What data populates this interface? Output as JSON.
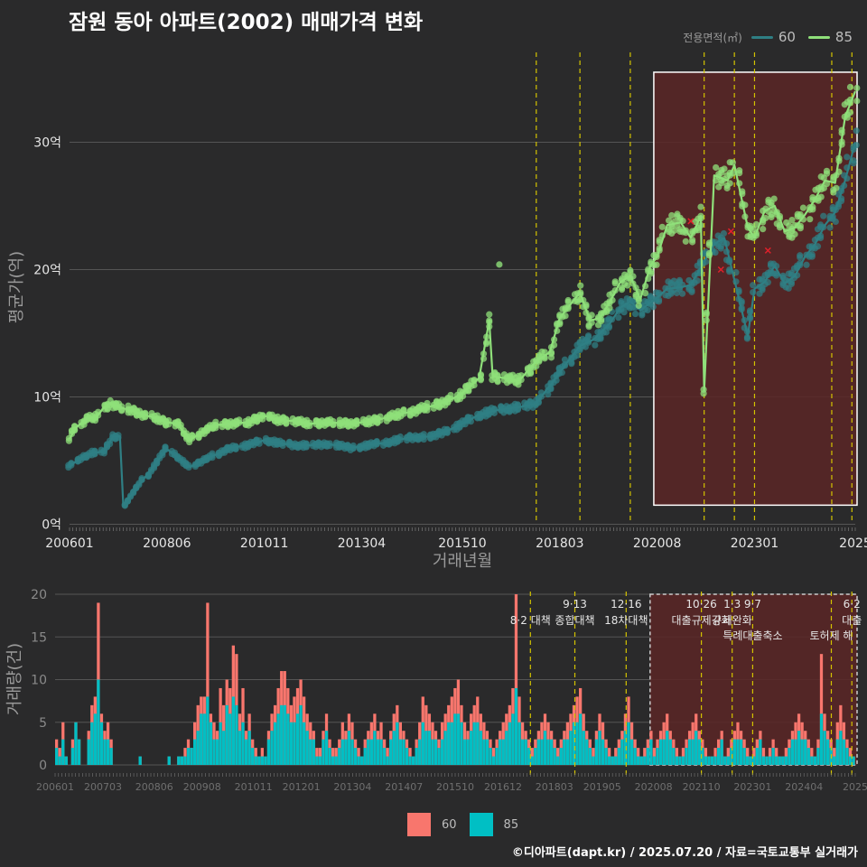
{
  "title": "잠원 동아 아파트(2002) 매매가격 변화",
  "credit": "©디아파트(dapt.kr) / 2025.07.20 / 자료=국토교통부 실거래가",
  "legend_top": {
    "label": "전용면적(㎡)",
    "items": [
      "60",
      "85"
    ]
  },
  "legend_bottom": {
    "items": [
      "60",
      "85"
    ]
  },
  "colors": {
    "background": "#2a2a2b",
    "s60_line": "#2f7f84",
    "s85_line": "#8fe07a",
    "bar60": "#f8766d",
    "bar85": "#00bfc4",
    "policy_line": "#d4c400",
    "highlight_fill": "#5a2626",
    "cancel_mark": "#e0202a"
  },
  "chart_data": [
    {
      "type": "line",
      "title": "잠원 동아 아파트(2002) 매매가격 변화",
      "xlabel": "거래년월",
      "ylabel": "평균가(억)",
      "ylim": [
        0,
        36
      ],
      "ytick_labels": [
        "0억",
        "10억",
        "20억",
        "30억"
      ],
      "yticks": [
        0,
        10,
        20,
        30
      ],
      "xtick_labels": [
        "200601",
        "200806",
        "201011",
        "201304",
        "201510",
        "201803",
        "202008",
        "202301",
        "2025"
      ],
      "xticks": [
        "2006-01",
        "2008-06",
        "2010-11",
        "2013-04",
        "2015-10",
        "2018-03",
        "2020-08",
        "2023-01",
        "2025-07"
      ],
      "policy_dates": [
        "2017-08",
        "2018-09",
        "2019-12",
        "2021-10",
        "2022-07",
        "2023-01",
        "2024-12",
        "2025-06"
      ],
      "highlight_range": [
        "2020-07",
        "2025-07"
      ],
      "highlight_ylim": [
        1.5,
        35.5
      ],
      "series": [
        {
          "name": "60",
          "points": [
            [
              "2006-01",
              4.5
            ],
            [
              "2006-04",
              5.2
            ],
            [
              "2006-08",
              5.6
            ],
            [
              "2006-11",
              5.7
            ],
            [
              "2007-02",
              6.9
            ],
            [
              "2007-04",
              6.9
            ],
            [
              "2007-05",
              1.5
            ],
            [
              "2008-06",
              5.9
            ],
            [
              "2009-01",
              4.5
            ],
            [
              "2009-06",
              5.2
            ],
            [
              "2009-09",
              5.5
            ],
            [
              "2010-01",
              6.0
            ],
            [
              "2010-06",
              6.2
            ],
            [
              "2010-11",
              6.6
            ],
            [
              "2011-03",
              6.4
            ],
            [
              "2011-08",
              6.2
            ],
            [
              "2012-01",
              6.2
            ],
            [
              "2012-06",
              6.3
            ],
            [
              "2013-01",
              6.0
            ],
            [
              "2013-06",
              6.2
            ],
            [
              "2014-01",
              6.5
            ],
            [
              "2014-06",
              6.8
            ],
            [
              "2015-01",
              6.9
            ],
            [
              "2015-06",
              7.4
            ],
            [
              "2015-10",
              7.9
            ],
            [
              "2016-03",
              8.6
            ],
            [
              "2016-09",
              9.0
            ],
            [
              "2017-03",
              9.2
            ],
            [
              "2017-08",
              9.5
            ],
            [
              "2018-01",
              11.2
            ],
            [
              "2018-06",
              13.0
            ],
            [
              "2018-09",
              14.0
            ],
            [
              "2019-01",
              14.5
            ],
            [
              "2019-06",
              15.8
            ],
            [
              "2019-09",
              17.0
            ],
            [
              "2019-12",
              17.5
            ],
            [
              "2020-03",
              16.8
            ],
            [
              "2020-08",
              17.8
            ],
            [
              "2020-11",
              18.5
            ],
            [
              "2021-03",
              18.6
            ],
            [
              "2021-06",
              18.8
            ],
            [
              "2022-01",
              22.0
            ],
            [
              "2022-04",
              22.5
            ],
            [
              "2022-09",
              17.0
            ],
            [
              "2022-11",
              14.8
            ],
            [
              "2023-01",
              18.5
            ],
            [
              "2023-04",
              19.0
            ],
            [
              "2023-07",
              20.3
            ],
            [
              "2023-10",
              18.9
            ],
            [
              "2024-01",
              19.5
            ],
            [
              "2024-04",
              21.0
            ],
            [
              "2024-07",
              22.0
            ],
            [
              "2024-10",
              23.5
            ],
            [
              "2025-01",
              24.5
            ],
            [
              "2025-04",
              27.0
            ],
            [
              "2025-07",
              30.0
            ]
          ]
        },
        {
          "name": "85",
          "points": [
            [
              "2006-01",
              6.7
            ],
            [
              "2006-03",
              7.6
            ],
            [
              "2006-06",
              8.3
            ],
            [
              "2006-09",
              8.4
            ],
            [
              "2006-11",
              9.1
            ],
            [
              "2007-01",
              9.5
            ],
            [
              "2007-04",
              9.2
            ],
            [
              "2008-03",
              8.3
            ],
            [
              "2008-06",
              8.0
            ],
            [
              "2008-09",
              7.9
            ],
            [
              "2009-01",
              6.6
            ],
            [
              "2009-04",
              7.2
            ],
            [
              "2009-09",
              7.8
            ],
            [
              "2010-01",
              7.9
            ],
            [
              "2010-06",
              8.0
            ],
            [
              "2010-11",
              8.5
            ],
            [
              "2011-03",
              8.2
            ],
            [
              "2011-08",
              8.1
            ],
            [
              "2012-01",
              7.9
            ],
            [
              "2012-06",
              8.0
            ],
            [
              "2013-01",
              7.9
            ],
            [
              "2013-04",
              8.0
            ],
            [
              "2013-09",
              8.2
            ],
            [
              "2014-01",
              8.5
            ],
            [
              "2014-06",
              8.8
            ],
            [
              "2015-01",
              9.3
            ],
            [
              "2015-06",
              9.7
            ],
            [
              "2015-10",
              10.3
            ],
            [
              "2016-03",
              11.5
            ],
            [
              "2016-06",
              16.0
            ],
            [
              "2016-07",
              11.6
            ],
            [
              "2016-10",
              11.5
            ],
            [
              "2017-03",
              11.3
            ],
            [
              "2017-08",
              12.8
            ],
            [
              "2017-12",
              13.5
            ],
            [
              "2018-03",
              16.2
            ],
            [
              "2018-09",
              18.2
            ],
            [
              "2018-12",
              16.0
            ],
            [
              "2019-03",
              16.2
            ],
            [
              "2019-06",
              17.5
            ],
            [
              "2019-09",
              19.0
            ],
            [
              "2019-12",
              19.5
            ],
            [
              "2020-03",
              17.7
            ],
            [
              "2020-06",
              20.3
            ],
            [
              "2020-08",
              21.0
            ],
            [
              "2020-11",
              23.5
            ],
            [
              "2021-03",
              23.7
            ],
            [
              "2021-06",
              22.5
            ],
            [
              "2021-09",
              24.2
            ],
            [
              "2021-10",
              10.5
            ],
            [
              "2022-01",
              27.4
            ],
            [
              "2022-05",
              27.0
            ],
            [
              "2022-07",
              28.2
            ],
            [
              "2022-11",
              23.3
            ],
            [
              "2023-01",
              22.5
            ],
            [
              "2023-04",
              24.6
            ],
            [
              "2023-07",
              25.0
            ],
            [
              "2023-10",
              23.0
            ],
            [
              "2024-01",
              23.3
            ],
            [
              "2024-04",
              24.3
            ],
            [
              "2024-07",
              25.5
            ],
            [
              "2024-10",
              27.0
            ],
            [
              "2025-01",
              26.8
            ],
            [
              "2025-04",
              32.0
            ],
            [
              "2025-07",
              34.0
            ]
          ]
        }
      ],
      "outlier": [
        "2016-09",
        20.4
      ],
      "cancelled_marks": [
        [
          "2021-06",
          23.8
        ],
        [
          "2022-03",
          20.0
        ],
        [
          "2022-06",
          23.0
        ],
        [
          "2023-05",
          21.5
        ]
      ]
    },
    {
      "type": "bar",
      "xlabel": "",
      "ylabel": "거래량(건)",
      "ylim": [
        0,
        21
      ],
      "yticks": [
        0,
        5,
        10,
        15,
        20
      ],
      "xtick_labels": [
        "200601",
        "200703",
        "200806",
        "200908",
        "201011",
        "201201",
        "201304",
        "201407",
        "201510",
        "201612",
        "201803",
        "201905",
        "202008",
        "202110",
        "202301",
        "202404",
        "2025"
      ],
      "xticks": [
        "2006-01",
        "2007-03",
        "2008-06",
        "2009-08",
        "2010-11",
        "2012-01",
        "2013-04",
        "2014-07",
        "2015-10",
        "2016-12",
        "2018-03",
        "2019-05",
        "2020-08",
        "2021-10",
        "2023-01",
        "2024-04",
        "2025-07"
      ],
      "series_names": [
        "60",
        "85"
      ],
      "x_start": "2006-01",
      "x_end": "2025-07",
      "bars_60": [
        3,
        2,
        5,
        1,
        0,
        3,
        4,
        2,
        0,
        0,
        4,
        7,
        8,
        19,
        6,
        4,
        5,
        3,
        0,
        0,
        0,
        0,
        0,
        0,
        0,
        0,
        1,
        0,
        0,
        0,
        0,
        0,
        0,
        0,
        0,
        1,
        0,
        0,
        1,
        1,
        2,
        3,
        2,
        5,
        7,
        8,
        8,
        19,
        6,
        5,
        4,
        9,
        7,
        10,
        9,
        14,
        13,
        6,
        9,
        4,
        6,
        3,
        2,
        1,
        2,
        1,
        4,
        6,
        7,
        9,
        11,
        11,
        9,
        7,
        8,
        9,
        10,
        8,
        6,
        5,
        4,
        2,
        2,
        4,
        6,
        3,
        2,
        2,
        3,
        5,
        4,
        6,
        5,
        3,
        2,
        1,
        3,
        4,
        5,
        6,
        4,
        5,
        3,
        2,
        4,
        6,
        7,
        5,
        4,
        3,
        2,
        1,
        3,
        5,
        8,
        7,
        6,
        5,
        4,
        3,
        5,
        6,
        7,
        8,
        9,
        10,
        7,
        5,
        4,
        6,
        7,
        8,
        6,
        5,
        4,
        3,
        2,
        3,
        4,
        5,
        6,
        7,
        9,
        20,
        8,
        5,
        4,
        3,
        2,
        3,
        4,
        5,
        6,
        5,
        4,
        3,
        2,
        3,
        4,
        5,
        6,
        7,
        8,
        9,
        6,
        4,
        3,
        2,
        4,
        6,
        5,
        3,
        2,
        1,
        2,
        3,
        4,
        6,
        8,
        5,
        3,
        2,
        1,
        2,
        3,
        4,
        2,
        3,
        4,
        5,
        6,
        4,
        3,
        2,
        1,
        2,
        3,
        4,
        5,
        6,
        4,
        3,
        2,
        1,
        1,
        2,
        3,
        4,
        1,
        2,
        3,
        4,
        5,
        4,
        3,
        2,
        1,
        2,
        3,
        4,
        2,
        1,
        2,
        3,
        2,
        1,
        1,
        2,
        3,
        4,
        5,
        6,
        5,
        4,
        3,
        2,
        1,
        3,
        13,
        6,
        4,
        3,
        2,
        5,
        7,
        5,
        3,
        2,
        1
      ],
      "bars_85": [
        2,
        1,
        3,
        1,
        0,
        2,
        5,
        3,
        0,
        0,
        3,
        5,
        6,
        10,
        5,
        3,
        3,
        2,
        0,
        0,
        0,
        0,
        0,
        0,
        0,
        0,
        1,
        0,
        0,
        0,
        0,
        0,
        0,
        0,
        0,
        1,
        0,
        0,
        1,
        1,
        1,
        2,
        2,
        3,
        4,
        6,
        6,
        8,
        5,
        3,
        3,
        5,
        4,
        7,
        6,
        8,
        7,
        4,
        5,
        3,
        4,
        2,
        1,
        1,
        1,
        1,
        3,
        4,
        5,
        6,
        7,
        7,
        6,
        5,
        5,
        6,
        7,
        5,
        4,
        3,
        3,
        1,
        1,
        3,
        4,
        2,
        1,
        1,
        2,
        3,
        3,
        4,
        3,
        2,
        1,
        1,
        2,
        3,
        3,
        4,
        3,
        3,
        2,
        1,
        3,
        4,
        5,
        3,
        3,
        2,
        1,
        1,
        2,
        3,
        5,
        4,
        4,
        3,
        3,
        2,
        3,
        4,
        5,
        5,
        6,
        6,
        5,
        3,
        3,
        4,
        5,
        5,
        4,
        3,
        3,
        2,
        1,
        2,
        3,
        3,
        4,
        5,
        6,
        9,
        5,
        3,
        3,
        2,
        1,
        2,
        3,
        3,
        4,
        3,
        3,
        2,
        1,
        2,
        3,
        3,
        4,
        5,
        5,
        6,
        4,
        3,
        2,
        1,
        3,
        4,
        3,
        2,
        1,
        1,
        1,
        2,
        3,
        4,
        5,
        3,
        2,
        1,
        1,
        1,
        2,
        3,
        1,
        2,
        3,
        3,
        4,
        3,
        2,
        1,
        1,
        1,
        2,
        3,
        3,
        4,
        3,
        2,
        1,
        1,
        1,
        1,
        2,
        3,
        1,
        1,
        2,
        3,
        3,
        3,
        2,
        1,
        1,
        1,
        2,
        3,
        1,
        1,
        1,
        2,
        1,
        1,
        1,
        1,
        2,
        3,
        3,
        4,
        3,
        3,
        2,
        1,
        1,
        2,
        6,
        4,
        3,
        2,
        1,
        3,
        4,
        3,
        2,
        1,
        1
      ],
      "policy_lines": [
        {
          "date": "2017-08",
          "date_label": "",
          "label": "8·2 대책"
        },
        {
          "date": "2018-09",
          "date_label": "9·13",
          "label": "종합대책"
        },
        {
          "date": "2019-12",
          "date_label": "12·16",
          "label": "18차대책"
        },
        {
          "date": "2021-10",
          "date_label": "10·26",
          "label": "대출규제강화"
        },
        {
          "date": "2022-07",
          "date_label": "1·3",
          "label": "규제완화"
        },
        {
          "date": "2023-01",
          "date_label": "9·7",
          "label": "특례대출축소"
        },
        {
          "date": "2024-12",
          "date_label": "",
          "label": "토허제 해"
        },
        {
          "date": "2025-06",
          "date_label": "6·2",
          "label": "대출"
        }
      ],
      "highlight_range": [
        "2020-07",
        "2025-07"
      ]
    }
  ]
}
